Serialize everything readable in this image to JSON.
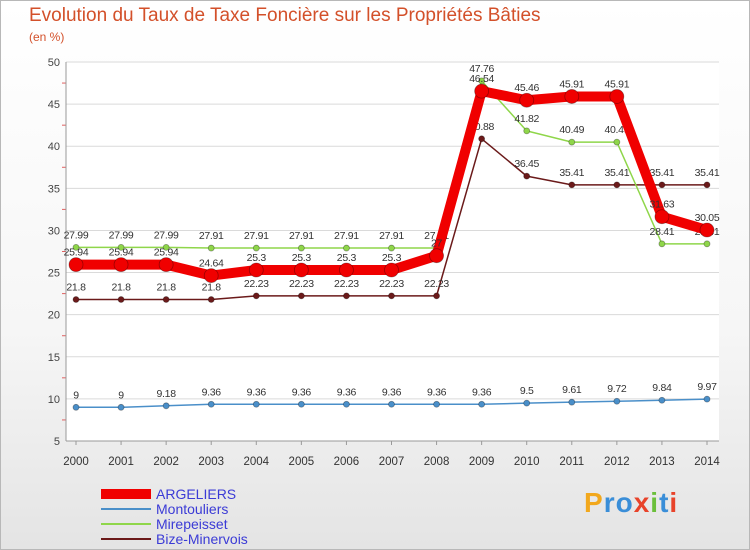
{
  "chart_data": {
    "type": "line",
    "title": "Evolution du Taux de Taxe Foncière sur les Propriétés Bâties",
    "ylabel": "(en %)",
    "xlabel": "",
    "ylim": [
      5,
      50
    ],
    "yticks": [
      5,
      10,
      15,
      20,
      25,
      30,
      35,
      40,
      45,
      50
    ],
    "categories": [
      "2000",
      "2001",
      "2002",
      "2003",
      "2004",
      "2005",
      "2006",
      "2007",
      "2008",
      "2009",
      "2010",
      "2011",
      "2012",
      "2013",
      "2014"
    ],
    "series": [
      {
        "name": "Montouliers",
        "color": "#4a8fc9",
        "values": [
          9,
          9,
          9.18,
          9.36,
          9.36,
          9.36,
          9.36,
          9.36,
          9.36,
          9.36,
          9.5,
          9.61,
          9.72,
          9.84,
          9.97
        ],
        "labels": [
          "9",
          "9",
          "9.18",
          "9.36",
          "9.36",
          "9.36",
          "9.36",
          "9.36",
          "9.36",
          "9.36",
          "9.5",
          "9.61",
          "9.72",
          "9.84",
          "9.97"
        ]
      },
      {
        "name": "Bize-Minervois",
        "color": "#6b1a1a",
        "values": [
          21.8,
          21.8,
          21.8,
          21.8,
          22.23,
          22.23,
          22.23,
          22.23,
          22.23,
          40.88,
          36.45,
          35.41,
          35.41,
          35.41,
          35.41
        ],
        "labels": [
          "21.8",
          "21.8",
          "21.8",
          "21.8",
          "22.23",
          "22.23",
          "22.23",
          "22.23",
          "22.23",
          "40.88",
          "36.45",
          "35.41",
          "35.41",
          "35.41",
          "35.41"
        ]
      },
      {
        "name": "Mirepeisset",
        "color": "#8fd64a",
        "values": [
          27.99,
          27.99,
          27.99,
          27.91,
          27.91,
          27.91,
          27.91,
          27.91,
          27.91,
          47.76,
          41.82,
          40.49,
          40.49,
          28.41,
          28.41
        ],
        "labels": [
          "27.99",
          "27.99",
          "27.99",
          "27.91",
          "27.91",
          "27.91",
          "27.91",
          "27.91",
          "27.91",
          "47.76",
          "41.82",
          "40.49",
          "40.49",
          "28.41",
          "28.41"
        ]
      },
      {
        "name": "ARGELIERS",
        "color": "#f00000",
        "values": [
          25.94,
          25.94,
          25.94,
          24.64,
          25.3,
          25.3,
          25.3,
          25.3,
          27,
          46.54,
          45.46,
          45.91,
          45.91,
          31.63,
          30.05
        ],
        "labels": [
          "25.94",
          "25.94",
          "25.94",
          "24.64",
          "25.3",
          "25.3",
          "25.3",
          "25.3",
          "27",
          "46.54",
          "45.46",
          "45.91",
          "45.91",
          "31.63",
          "30.05"
        ]
      }
    ],
    "legend": [
      "ARGELIERS",
      "Montouliers",
      "Mirepeisset",
      "Bize-Minervois"
    ],
    "legend_position": "bottom-left"
  },
  "brand": {
    "text": "Proxiti",
    "colors": [
      "#f2a81d",
      "#3a8ed8",
      "#3a8ed8",
      "#e8432a",
      "#6bbf3a",
      "#3a8ed8",
      "#e8432a"
    ]
  }
}
